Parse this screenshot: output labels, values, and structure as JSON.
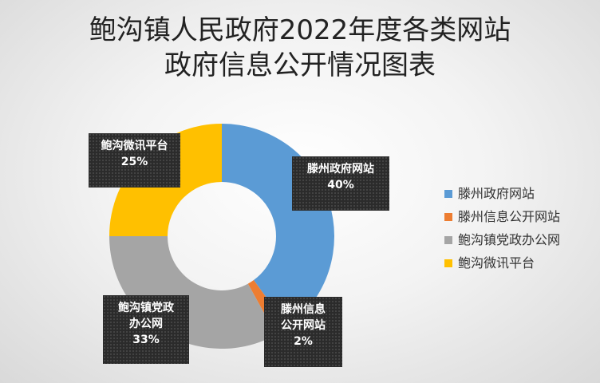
{
  "chart_data": {
    "type": "pie",
    "variant": "doughnut",
    "title": "鲍沟镇人民政府2022年度各类网站政府信息公开情况图表",
    "title_lines": [
      "鲍沟镇人民政府2022年度各类网站",
      "政府信息公开情况图表"
    ],
    "categories": [
      "滕州政府网站",
      "滕州信息公开网站",
      "鲍沟镇党政办公网",
      "鲍沟微讯平台"
    ],
    "values": [
      40,
      2,
      33,
      25
    ],
    "unit": "%",
    "colors": [
      "#5b9bd5",
      "#ed7d31",
      "#a5a5a5",
      "#ffc000"
    ],
    "data_labels": [
      {
        "name_lines": [
          "滕州政府网站"
        ],
        "value": "40%"
      },
      {
        "name_lines": [
          "滕州信息",
          "公开网站"
        ],
        "value": "2%"
      },
      {
        "name_lines": [
          "鲍沟镇党政",
          "办公网"
        ],
        "value": "33%"
      },
      {
        "name_lines": [
          "鲍沟微讯平台"
        ],
        "value": "25%"
      }
    ],
    "legend_position": "right",
    "legend": [
      "滕州政府网站",
      "滕州信息公开网站",
      "鲍沟镇党政办公网",
      "鲍沟微讯平台"
    ]
  }
}
